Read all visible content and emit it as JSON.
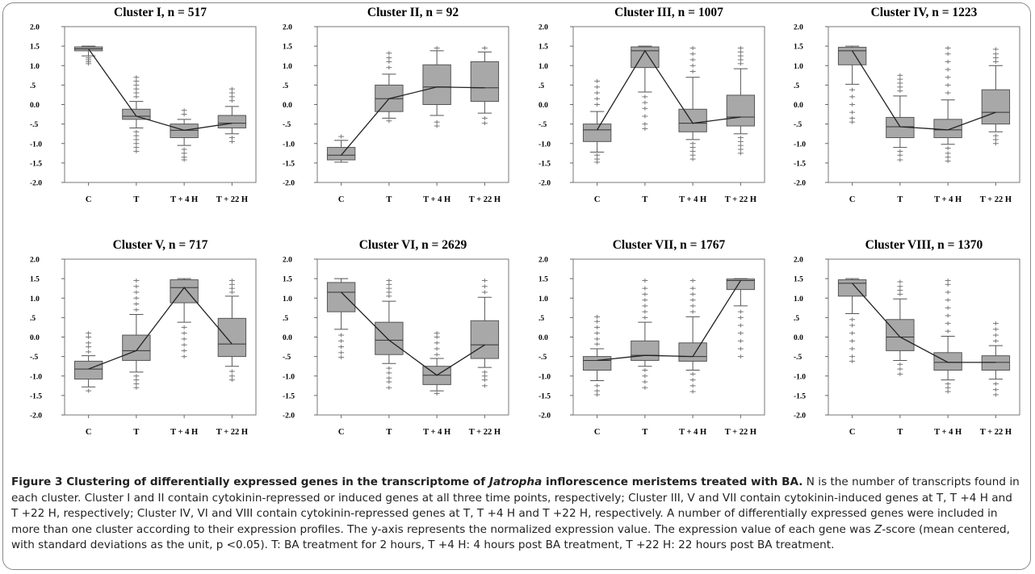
{
  "figure": {
    "caption": {
      "label": "Figure 3",
      "title_before": " Clustering of differentially expressed genes in the transcriptome of ",
      "title_italic": "Jatropha",
      "title_after": " inflorescence meristems treated with BA.",
      "body_1": " N is the number of transcripts found in each cluster. Cluster I and II contain cytokinin-repressed or induced genes at all three time points, respectively; Cluster III, V and VII contain cytokinin-induced genes at T, T +4 H and T +22 H, respectively; Cluster IV, VI and VIII contain cytokinin-repressed genes at T, T +4 H and T +22 H, respectively. A number of differentially expressed genes were included in more than one cluster according to their expression profiles. The y-axis represents the normalized expression value. The expression value of each gene was ",
      "body_italic": "Z",
      "body_2": "-score (mean centered, with standard deviations as the unit, p <0.05). T: BA treatment for 2 hours, T +4 H: 4 hours post BA treatment, T +22 H: 22 hours post BA treatment."
    }
  },
  "chart_data": [
    {
      "type": "box",
      "title": "Cluster I, n = 517",
      "categories": [
        "C",
        "T",
        "T + 4 H",
        "T + 22 H"
      ],
      "ylim": [
        -2.0,
        2.0
      ],
      "yticks": [
        "2.0",
        "1.5",
        "1.0",
        ".5",
        "0.0",
        "-.5",
        "-1.0",
        "-1.5",
        "-2.0"
      ],
      "grid": false,
      "boxes": [
        {
          "q1": 1.38,
          "median": 1.43,
          "q3": 1.48,
          "whisker_low": 1.25,
          "whisker_high": 1.5,
          "outliers_low": [
            1.2,
            1.15,
            1.1,
            1.05
          ],
          "outliers_high": []
        },
        {
          "q1": -0.38,
          "median": -0.3,
          "q3": -0.12,
          "whisker_low": -0.6,
          "whisker_high": 0.08,
          "outliers_low": [
            -0.7,
            -0.8,
            -0.9,
            -1.0,
            -1.1,
            -1.2
          ],
          "outliers_high": [
            0.2,
            0.3,
            0.4,
            0.5,
            0.6,
            0.7
          ]
        },
        {
          "q1": -0.85,
          "median": -0.66,
          "q3": -0.5,
          "whisker_low": -1.05,
          "whisker_high": -0.38,
          "outliers_low": [
            -1.15,
            -1.25,
            -1.35,
            -1.42
          ],
          "outliers_high": [
            -0.25,
            -0.15
          ]
        },
        {
          "q1": -0.6,
          "median": -0.48,
          "q3": -0.28,
          "whisker_low": -0.75,
          "whisker_high": -0.05,
          "outliers_low": [
            -0.85,
            -0.95
          ],
          "outliers_high": [
            0.1,
            0.2,
            0.3,
            0.4
          ]
        }
      ],
      "median_line": [
        1.43,
        -0.3,
        -0.66,
        -0.48
      ]
    },
    {
      "type": "box",
      "title": "Cluster II, n = 92",
      "categories": [
        "C",
        "T",
        "T + 4 H",
        "T + 22 H"
      ],
      "ylim": [
        -2.0,
        2.0
      ],
      "yticks": [
        "2.0",
        "1.5",
        "1.0",
        ".5",
        "0.0",
        "-.5",
        "-1.0",
        "-1.5",
        "-2.0"
      ],
      "grid": false,
      "boxes": [
        {
          "q1": -1.42,
          "median": -1.3,
          "q3": -1.1,
          "whisker_low": -1.48,
          "whisker_high": -0.92,
          "outliers_low": [],
          "outliers_high": [
            -0.82
          ]
        },
        {
          "q1": -0.18,
          "median": 0.15,
          "q3": 0.5,
          "whisker_low": -0.35,
          "whisker_high": 0.78,
          "outliers_low": [
            -0.42
          ],
          "outliers_high": [
            0.95,
            1.1,
            1.2,
            1.32
          ]
        },
        {
          "q1": 0.0,
          "median": 0.45,
          "q3": 1.02,
          "whisker_low": -0.28,
          "whisker_high": 1.38,
          "outliers_low": [
            -0.45,
            -0.55
          ],
          "outliers_high": [
            1.45
          ]
        },
        {
          "q1": 0.08,
          "median": 0.43,
          "q3": 1.1,
          "whisker_low": -0.22,
          "whisker_high": 1.35,
          "outliers_low": [
            -0.35,
            -0.48
          ],
          "outliers_high": [
            1.45
          ]
        }
      ],
      "median_line": [
        -1.3,
        0.15,
        0.45,
        0.43
      ]
    },
    {
      "type": "box",
      "title": "Cluster III, n = 1007",
      "categories": [
        "C",
        "T",
        "T + 4 H",
        "T + 22 H"
      ],
      "ylim": [
        -2.0,
        2.0
      ],
      "yticks": [
        "2.0",
        "1.5",
        "1.0",
        ".5",
        "0.0",
        "-.5",
        "-1.0",
        "-1.5",
        "-2.0"
      ],
      "grid": false,
      "boxes": [
        {
          "q1": -0.95,
          "median": -0.65,
          "q3": -0.5,
          "whisker_low": -1.22,
          "whisker_high": -0.18,
          "outliers_low": [
            -1.3,
            -1.4,
            -1.48
          ],
          "outliers_high": [
            0.0,
            0.15,
            0.3,
            0.45,
            0.6
          ]
        },
        {
          "q1": 0.95,
          "median": 1.38,
          "q3": 1.48,
          "whisker_low": 0.32,
          "whisker_high": 1.5,
          "outliers_low": [
            0.2,
            0.05,
            -0.1,
            -0.3,
            -0.5,
            -0.62
          ],
          "outliers_high": []
        },
        {
          "q1": -0.7,
          "median": -0.48,
          "q3": -0.12,
          "whisker_low": -0.9,
          "whisker_high": 0.7,
          "outliers_low": [
            -1.0,
            -1.1,
            -1.2,
            -1.3,
            -1.4
          ],
          "outliers_high": [
            0.85,
            1.0,
            1.15,
            1.3,
            1.45
          ]
        },
        {
          "q1": -0.55,
          "median": -0.32,
          "q3": 0.24,
          "whisker_low": -0.75,
          "whisker_high": 0.92,
          "outliers_low": [
            -0.85,
            -0.95,
            -1.05,
            -1.15,
            -1.25
          ],
          "outliers_high": [
            1.05,
            1.15,
            1.25,
            1.35,
            1.45
          ]
        }
      ],
      "median_line": [
        -0.65,
        1.38,
        -0.48,
        -0.32
      ]
    },
    {
      "type": "box",
      "title": "Cluster IV, n = 1223",
      "categories": [
        "C",
        "T",
        "T + 4 H",
        "T + 22 H"
      ],
      "ylim": [
        -2.0,
        2.0
      ],
      "yticks": [
        "2.0",
        "1.5",
        "1.0",
        ".5",
        "0.0",
        "-.5",
        "-1.0",
        "-1.5",
        "-2.0"
      ],
      "grid": false,
      "boxes": [
        {
          "q1": 1.02,
          "median": 1.38,
          "q3": 1.47,
          "whisker_low": 0.52,
          "whisker_high": 1.5,
          "outliers_low": [
            0.38,
            0.2,
            0.0,
            -0.2,
            -0.35,
            -0.45
          ],
          "outliers_high": []
        },
        {
          "q1": -0.85,
          "median": -0.57,
          "q3": -0.33,
          "whisker_low": -1.1,
          "whisker_high": 0.22,
          "outliers_low": [
            -1.2,
            -1.3,
            -1.42
          ],
          "outliers_high": [
            0.35,
            0.45,
            0.55,
            0.65,
            0.75
          ]
        },
        {
          "q1": -0.85,
          "median": -0.65,
          "q3": -0.38,
          "whisker_low": -1.02,
          "whisker_high": 0.12,
          "outliers_low": [
            -1.12,
            -1.25,
            -1.35,
            -1.45
          ],
          "outliers_high": [
            0.3,
            0.5,
            0.7,
            0.9,
            1.1,
            1.3,
            1.45
          ]
        },
        {
          "q1": -0.5,
          "median": -0.2,
          "q3": 0.38,
          "whisker_low": -0.7,
          "whisker_high": 1.0,
          "outliers_low": [
            -0.8,
            -0.9,
            -1.0
          ],
          "outliers_high": [
            1.1,
            1.2,
            1.3,
            1.42
          ]
        }
      ],
      "median_line": [
        1.38,
        -0.57,
        -0.65,
        -0.2
      ]
    },
    {
      "type": "box",
      "title": "Cluster V, n = 717",
      "categories": [
        "C",
        "T",
        "T + 4 H",
        "T + 22 H"
      ],
      "ylim": [
        -2.0,
        2.0
      ],
      "yticks": [
        "2.0",
        "1.5",
        "1.0",
        ".5",
        "0.0",
        "-.5",
        "-1.0",
        "-1.5",
        "-2.0"
      ],
      "grid": false,
      "boxes": [
        {
          "q1": -1.08,
          "median": -0.82,
          "q3": -0.62,
          "whisker_low": -1.28,
          "whisker_high": -0.48,
          "outliers_low": [
            -1.38
          ],
          "outliers_high": [
            -0.38,
            -0.25,
            -0.15,
            0.0,
            0.1
          ]
        },
        {
          "q1": -0.6,
          "median": -0.35,
          "q3": 0.05,
          "whisker_low": -0.9,
          "whisker_high": 0.58,
          "outliers_low": [
            -1.0,
            -1.1,
            -1.2,
            -1.3
          ],
          "outliers_high": [
            0.7,
            0.85,
            1.0,
            1.15,
            1.3,
            1.45
          ]
        },
        {
          "q1": 0.88,
          "median": 1.27,
          "q3": 1.47,
          "whisker_low": 0.38,
          "whisker_high": 1.5,
          "outliers_low": [
            0.25,
            0.1,
            -0.05,
            -0.2,
            -0.35,
            -0.5
          ],
          "outliers_high": []
        },
        {
          "q1": -0.5,
          "median": -0.18,
          "q3": 0.48,
          "whisker_low": -0.75,
          "whisker_high": 1.05,
          "outliers_low": [
            -0.88,
            -1.0,
            -1.1
          ],
          "outliers_high": [
            1.15,
            1.25,
            1.35,
            1.45
          ]
        }
      ],
      "median_line": [
        -0.82,
        -0.35,
        1.27,
        -0.18
      ]
    },
    {
      "type": "box",
      "title": "Cluster VI, n = 2629",
      "categories": [
        "C",
        "T",
        "T + 4 H",
        "T + 22 H"
      ],
      "ylim": [
        -2.0,
        2.0
      ],
      "yticks": [
        "2.0",
        "1.5",
        "1.0",
        ".5",
        "0.0",
        "-.5",
        "-1.0",
        "-1.5",
        "-2.0"
      ],
      "grid": false,
      "boxes": [
        {
          "q1": 0.65,
          "median": 1.15,
          "q3": 1.4,
          "whisker_low": 0.2,
          "whisker_high": 1.5,
          "outliers_low": [
            0.05,
            -0.1,
            -0.25,
            -0.4,
            -0.52
          ],
          "outliers_high": []
        },
        {
          "q1": -0.45,
          "median": -0.08,
          "q3": 0.38,
          "whisker_low": -0.68,
          "whisker_high": 0.92,
          "outliers_low": [
            -0.8,
            -0.92,
            -1.05,
            -1.15,
            -1.3
          ],
          "outliers_high": [
            1.05,
            1.15,
            1.25,
            1.35,
            1.45
          ]
        },
        {
          "q1": -1.22,
          "median": -0.98,
          "q3": -0.75,
          "whisker_low": -1.38,
          "whisker_high": -0.55,
          "outliers_low": [
            -1.45
          ],
          "outliers_high": [
            -0.45,
            -0.3,
            -0.15,
            0.0,
            0.1
          ]
        },
        {
          "q1": -0.55,
          "median": -0.2,
          "q3": 0.42,
          "whisker_low": -0.78,
          "whisker_high": 1.02,
          "outliers_low": [
            -0.9,
            -1.0,
            -1.1,
            -1.25
          ],
          "outliers_high": [
            1.15,
            1.3,
            1.45
          ]
        }
      ],
      "median_line": [
        1.15,
        -0.08,
        -0.98,
        -0.2
      ]
    },
    {
      "type": "box",
      "title": "Cluster VII, n = 1767",
      "categories": [
        "C",
        "T",
        "T + 4 H",
        "T + 22 H"
      ],
      "ylim": [
        -2.0,
        2.0
      ],
      "yticks": [
        "2.0",
        "1.5",
        "1.0",
        ".5",
        "0.0",
        "-.5",
        "-1.0",
        "-1.5",
        "-2.0"
      ],
      "grid": false,
      "boxes": [
        {
          "q1": -0.85,
          "median": -0.6,
          "q3": -0.5,
          "whisker_low": -1.12,
          "whisker_high": -0.3,
          "outliers_low": [
            -1.25,
            -1.38,
            -1.48
          ],
          "outliers_high": [
            -0.18,
            -0.05,
            0.1,
            0.25,
            0.4,
            0.52
          ]
        },
        {
          "q1": -0.6,
          "median": -0.47,
          "q3": -0.1,
          "whisker_low": -0.75,
          "whisker_high": 0.38,
          "outliers_low": [
            -0.85,
            -1.0,
            -1.15,
            -1.3
          ],
          "outliers_high": [
            0.5,
            0.65,
            0.8,
            0.95,
            1.1,
            1.25,
            1.45
          ]
        },
        {
          "q1": -0.62,
          "median": -0.5,
          "q3": -0.15,
          "whisker_low": -0.85,
          "whisker_high": 0.52,
          "outliers_low": [
            -0.95,
            -1.1,
            -1.25,
            -1.4
          ],
          "outliers_high": [
            0.65,
            0.8,
            0.95,
            1.1,
            1.25,
            1.45
          ]
        },
        {
          "q1": 1.22,
          "median": 1.45,
          "q3": 1.49,
          "whisker_low": 0.8,
          "whisker_high": 1.5,
          "outliers_low": [
            0.65,
            0.5,
            0.3,
            0.1,
            -0.1,
            -0.3,
            -0.5
          ],
          "outliers_high": []
        }
      ],
      "median_line": [
        -0.6,
        -0.47,
        -0.5,
        1.45
      ]
    },
    {
      "type": "box",
      "title": "Cluster VIII, n = 1370",
      "categories": [
        "C",
        "T",
        "T + 4 H",
        "T + 22 H"
      ],
      "ylim": [
        -2.0,
        2.0
      ],
      "yticks": [
        "2.0",
        "1.5",
        "1.0",
        ".5",
        "0.0",
        "-.5",
        "-1.0",
        "-1.5",
        "-2.0"
      ],
      "grid": false,
      "boxes": [
        {
          "q1": 1.05,
          "median": 1.38,
          "q3": 1.47,
          "whisker_low": 0.6,
          "whisker_high": 1.5,
          "outliers_low": [
            0.45,
            0.3,
            0.1,
            -0.1,
            -0.3,
            -0.5,
            -0.62
          ],
          "outliers_high": []
        },
        {
          "q1": -0.35,
          "median": 0.0,
          "q3": 0.45,
          "whisker_low": -0.6,
          "whisker_high": 0.98,
          "outliers_low": [
            -0.7,
            -0.82,
            -0.95
          ],
          "outliers_high": [
            1.1,
            1.2,
            1.3,
            1.42
          ]
        },
        {
          "q1": -0.85,
          "median": -0.65,
          "q3": -0.4,
          "whisker_low": -1.1,
          "whisker_high": 0.02,
          "outliers_low": [
            -1.2,
            -1.3,
            -1.4
          ],
          "outliers_high": [
            0.15,
            0.35,
            0.55,
            0.75,
            0.95,
            1.15,
            1.35,
            1.45
          ]
        },
        {
          "q1": -0.85,
          "median": -0.65,
          "q3": -0.48,
          "whisker_low": -1.08,
          "whisker_high": -0.22,
          "outliers_low": [
            -1.2,
            -1.35,
            -1.48
          ],
          "outliers_high": [
            -0.1,
            0.05,
            0.2,
            0.35
          ]
        }
      ],
      "median_line": [
        1.38,
        0.0,
        -0.65,
        -0.65
      ]
    }
  ]
}
